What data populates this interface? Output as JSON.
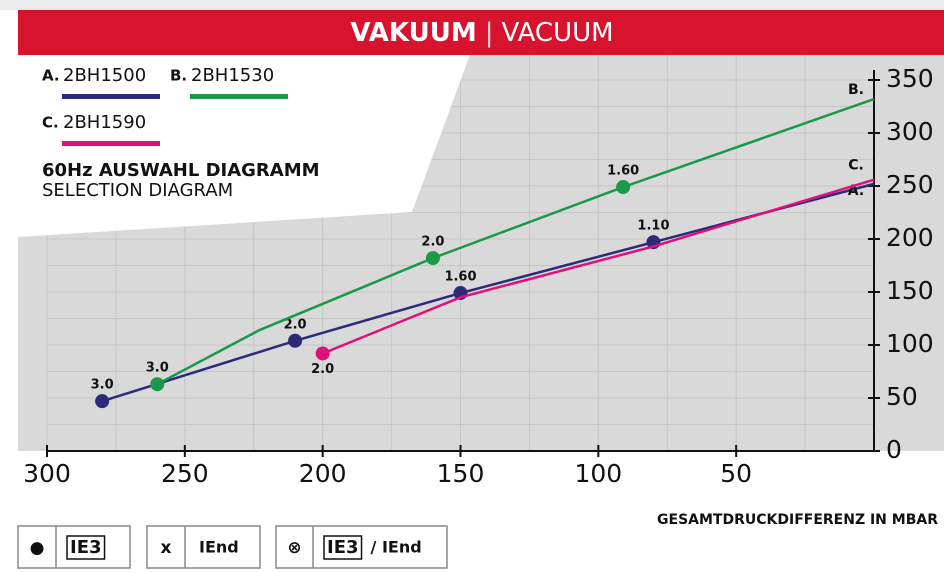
{
  "chart_data": {
    "type": "line",
    "title_bold": "VAKUUM",
    "title_separator": "|",
    "title": "VACUUM",
    "subtitle_bold": "60Hz AUSWAHL DIAGRAMM",
    "subtitle": "SELECTION DIAGRAM",
    "x_label": "GESAMTDRUCKDIFFERENZ IN MBAR",
    "xlim": [
      300,
      0
    ],
    "xticks": [
      300,
      250,
      200,
      150,
      100,
      50
    ],
    "xminorticks": [
      275,
      225,
      175,
      125,
      75,
      25
    ],
    "ylim": [
      0,
      350
    ],
    "yticks": [
      0,
      50,
      100,
      150,
      200,
      250,
      300,
      350
    ],
    "yminorticks": [
      25,
      75,
      125,
      175,
      225,
      275,
      325
    ],
    "grid": true,
    "series": [
      {
        "letter": "A.",
        "name": "2BH1500",
        "color": "#2e2a7a",
        "x": [
          280,
          210,
          150,
          80,
          0
        ],
        "values": [
          47,
          104,
          149,
          197,
          252
        ],
        "points": {
          "x": [
            280,
            210,
            150,
            80
          ],
          "values": [
            47,
            104,
            149,
            197
          ],
          "labels": [
            "3.0",
            "2.0",
            "1.60",
            "1.10"
          ]
        }
      },
      {
        "letter": "B.",
        "name": "2BH1530",
        "color": "#1a9a48",
        "x": [
          260,
          223,
          160,
          91,
          0
        ],
        "values": [
          63,
          114,
          182,
          249,
          332
        ],
        "points": {
          "x": [
            260,
            160,
            91
          ],
          "values": [
            63,
            182,
            249
          ],
          "labels": [
            "3.0",
            "2.0",
            "1.60"
          ]
        }
      },
      {
        "letter": "C.",
        "name": "2BH1590",
        "color": "#e0107a",
        "x": [
          200,
          150,
          80,
          0
        ],
        "values": [
          92,
          145,
          193,
          256
        ],
        "points": {
          "x": [
            200
          ],
          "values": [
            92
          ],
          "labels": [
            "2.0"
          ]
        }
      }
    ],
    "footer": [
      {
        "symbol": "●",
        "text": "IE3"
      },
      {
        "symbol": "x",
        "text": "IEnd"
      },
      {
        "symbol": "⊗",
        "text": "IE3",
        "suffix": "/ IEnd"
      }
    ]
  }
}
